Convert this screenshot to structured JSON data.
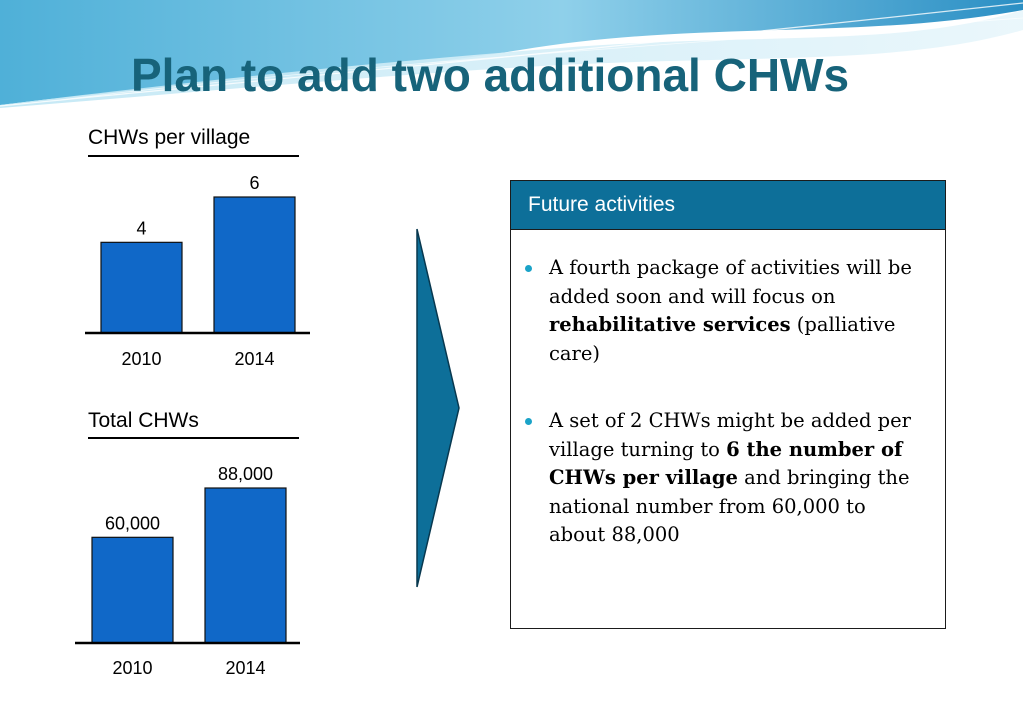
{
  "page": {
    "title": "Plan to add two additional CHWs"
  },
  "colors": {
    "title": "#17637a",
    "bar": "#1068c8",
    "header": "#0d6f99",
    "bullet": "#1aa3c8",
    "arrow": "#0d6f99"
  },
  "chart_data": [
    {
      "type": "bar",
      "title": "CHWs per village",
      "categories": [
        "2010",
        "2014"
      ],
      "values": [
        4,
        6
      ],
      "value_labels": [
        "4",
        "6"
      ],
      "xlabel": "",
      "ylabel": "",
      "grid": false
    },
    {
      "type": "bar",
      "title": "Total CHWs",
      "categories": [
        "2010",
        "2014"
      ],
      "values": [
        60000,
        88000
      ],
      "value_labels": [
        "60,000",
        "88,000"
      ],
      "xlabel": "",
      "ylabel": "",
      "grid": false
    }
  ],
  "panel": {
    "header": "Future activities",
    "bullets": [
      {
        "pre": "A fourth package of activities will be added soon and will focus on ",
        "bold": "rehabilitative services",
        "post": " (palliative care)"
      },
      {
        "pre": "A set of 2 CHWs might be added per village turning to ",
        "bold": "6 the number of CHWs per village",
        "post": " and bringing the national number from 60,000 to about 88,000"
      }
    ]
  }
}
